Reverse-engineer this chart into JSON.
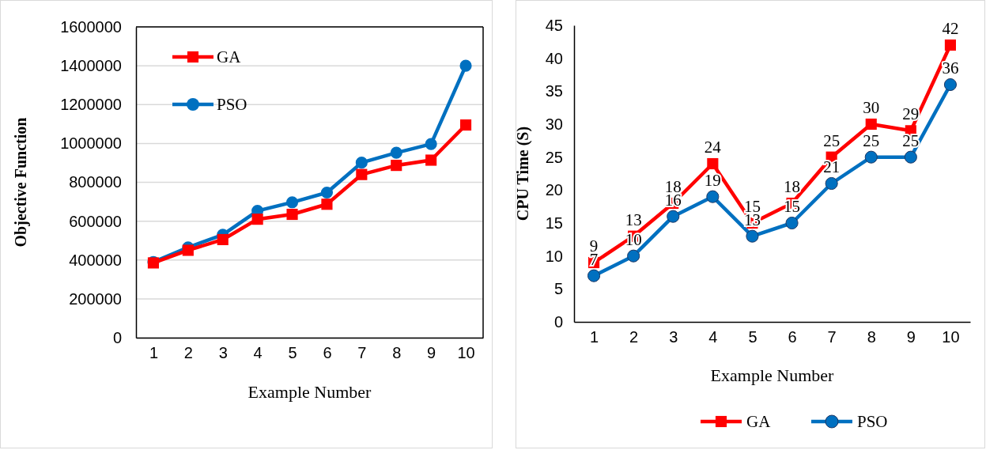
{
  "chart_data": [
    {
      "type": "line",
      "xlabel": "Example Number",
      "ylabel": "Objective Function",
      "categories": [
        "1",
        "2",
        "3",
        "4",
        "5",
        "6",
        "7",
        "8",
        "9",
        "10"
      ],
      "series": [
        {
          "name": "GA",
          "color": "#ff0000",
          "marker": "square",
          "values": [
            385000,
            450000,
            505000,
            610000,
            635000,
            687000,
            840000,
            887000,
            914000,
            1095000
          ]
        },
        {
          "name": "PSO",
          "color": "#0070c0",
          "marker": "circle",
          "values": [
            390000,
            465000,
            530000,
            653000,
            697000,
            747000,
            901000,
            952000,
            997000,
            1400000
          ]
        }
      ],
      "ylim": [
        0,
        1600000
      ],
      "yticks": [
        0,
        200000,
        400000,
        600000,
        800000,
        1000000,
        1200000,
        1400000,
        1600000
      ],
      "grid": "y",
      "legend": "top left"
    },
    {
      "type": "line",
      "xlabel": "Example Number",
      "ylabel": "CPU Time (S)",
      "categories": [
        "1",
        "2",
        "3",
        "4",
        "5",
        "6",
        "7",
        "8",
        "9",
        "10"
      ],
      "series": [
        {
          "name": "GA",
          "color": "#ff0000",
          "marker": "square",
          "values": [
            9,
            13,
            18,
            24,
            15,
            18,
            25,
            30,
            29,
            42
          ]
        },
        {
          "name": "PSO",
          "color": "#0070c0",
          "marker": "circle",
          "values": [
            7,
            10,
            16,
            19,
            13,
            15,
            21,
            25,
            25,
            36
          ]
        }
      ],
      "ylim": [
        0,
        45
      ],
      "yticks": [
        0,
        5,
        10,
        15,
        20,
        25,
        30,
        35,
        40,
        45
      ],
      "grid": false,
      "legend": "bottom",
      "data_labels": true
    }
  ]
}
